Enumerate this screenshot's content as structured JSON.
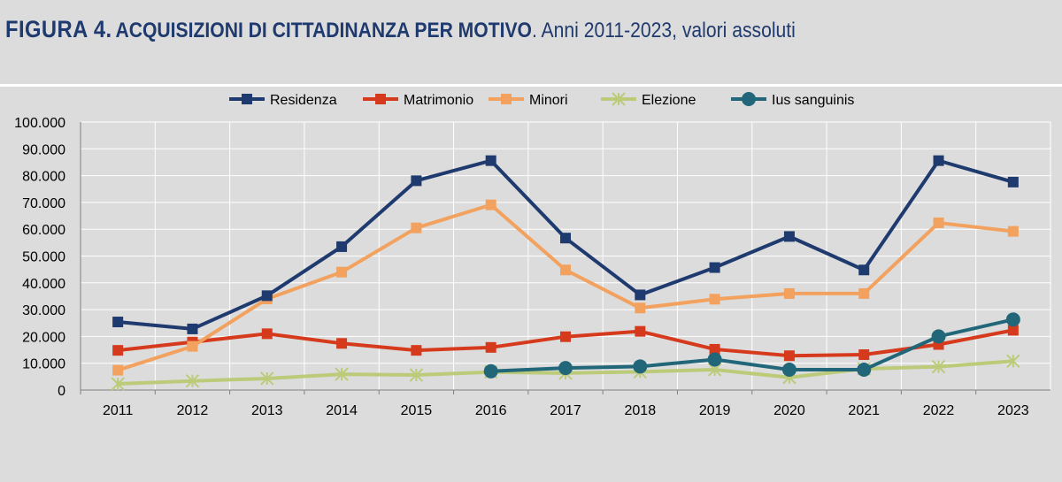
{
  "header": {
    "figure_label": "FIGURA 4.",
    "title": "ACQUISIZIONI DI CITTADINANZA PER MOTIVO",
    "subtitle": ". Anni 2011-2023, valori assoluti"
  },
  "chart_data": {
    "type": "line",
    "title": "ACQUISIZIONI DI CITTADINANZA PER MOTIVO",
    "subtitle": "Anni 2011-2023, valori assoluti",
    "xlabel": "",
    "ylabel": "",
    "ylim": [
      0,
      100000
    ],
    "yticks": [
      0,
      10000,
      20000,
      30000,
      40000,
      50000,
      60000,
      70000,
      80000,
      90000,
      100000
    ],
    "ytick_labels": [
      "0",
      "10.000",
      "20.000",
      "30.000",
      "40.000",
      "50.000",
      "60.000",
      "70.000",
      "80.000",
      "90.000",
      "100.000"
    ],
    "grid": true,
    "legend_position": "top",
    "categories": [
      "2011",
      "2012",
      "2013",
      "2014",
      "2015",
      "2016",
      "2017",
      "2018",
      "2019",
      "2020",
      "2021",
      "2022",
      "2023"
    ],
    "series": [
      {
        "name": "Residenza",
        "color": "#1f3a6e",
        "marker": "square",
        "values": [
          25400,
          22800,
          35200,
          53500,
          78100,
          85600,
          56700,
          35500,
          45700,
          57300,
          44800,
          85600,
          77600
        ]
      },
      {
        "name": "Matrimonio",
        "color": "#d63a1c",
        "marker": "square",
        "values": [
          14800,
          17900,
          21000,
          17400,
          14800,
          15900,
          19900,
          21900,
          15200,
          12800,
          13200,
          17000,
          22300
        ]
      },
      {
        "name": "Minori",
        "color": "#f2a25e",
        "marker": "square",
        "values": [
          7400,
          16300,
          34000,
          44000,
          60500,
          69100,
          44800,
          30600,
          33900,
          36000,
          36000,
          62400,
          59200
        ]
      },
      {
        "name": "Elezione",
        "color": "#bccb79",
        "marker": "star",
        "values": [
          2300,
          3400,
          4300,
          5900,
          5600,
          6700,
          6300,
          6800,
          7600,
          4700,
          7900,
          8700,
          10800
        ]
      },
      {
        "name": "Ius sanguinis",
        "color": "#216779",
        "marker": "circle",
        "values": [
          null,
          null,
          null,
          null,
          null,
          7000,
          8200,
          8800,
          11400,
          7600,
          7600,
          20000,
          26300
        ]
      }
    ]
  }
}
